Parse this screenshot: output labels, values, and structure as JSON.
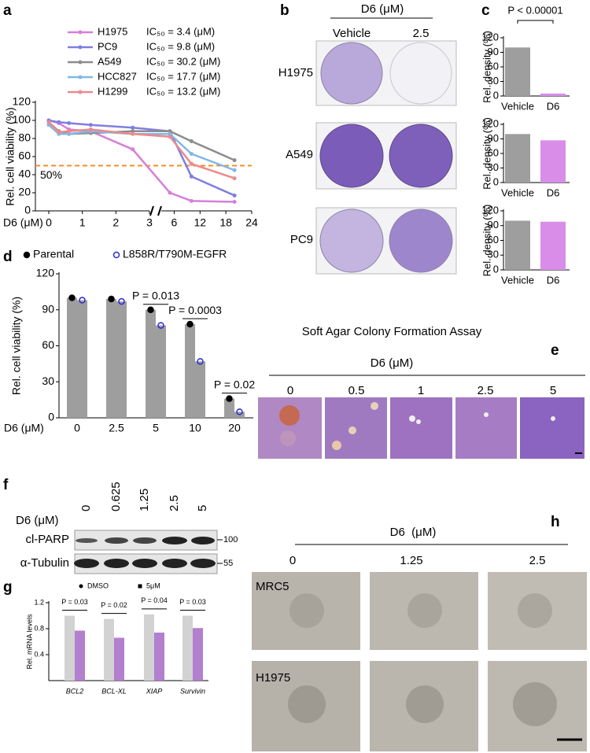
{
  "figure": {
    "letters": [
      "a",
      "b",
      "c",
      "d",
      "e",
      "f",
      "g",
      "h"
    ],
    "b": {
      "header": "D6 (μM)",
      "columns": [
        "Vehicle",
        "2.5"
      ],
      "rows": [
        "H1975",
        "A549",
        "PC9"
      ]
    },
    "e": {
      "title": "Soft Agar Colony Formation Assay",
      "header": "D6 (μM)",
      "columns": [
        "0",
        "0.5",
        "1",
        "2.5",
        "5"
      ]
    },
    "f": {
      "header": "D6 (μM)",
      "columns": [
        "0",
        "0.625",
        "1.25",
        "2.5",
        "5"
      ],
      "rows": [
        "cl-PARP",
        "α-Tubulin"
      ],
      "markers": [
        "100",
        "55"
      ]
    },
    "h": {
      "header": "D6  (μM)",
      "columns": [
        "0",
        "1.25",
        "2.5"
      ],
      "rows": [
        "MRC5",
        "H1975"
      ]
    }
  },
  "chart_data": [
    {
      "type": "line",
      "ylabel": "Rel. cell viability (%)",
      "xlabel": "D6 (μM)",
      "x": [
        0,
        0.3,
        0.6,
        1.25,
        2.5,
        5,
        10,
        20
      ],
      "xlim": [
        0,
        24
      ],
      "xbreak": 3,
      "xticks": [
        0,
        1,
        2,
        3,
        6,
        12,
        18,
        24
      ],
      "ylim": [
        0,
        120
      ],
      "yticks": [
        0,
        20,
        40,
        60,
        80,
        100,
        120
      ],
      "hline": {
        "value": 50,
        "label": "50%",
        "color": "#f0902a"
      },
      "series": [
        {
          "name": "H1975",
          "note": "IC₅₀ = 3.4 (μM)",
          "color": "#d67fd8",
          "values": [
            100,
            97,
            90,
            88,
            68,
            20,
            11,
            10
          ]
        },
        {
          "name": "PC9",
          "note": "IC₅₀ = 9.8 (μM)",
          "color": "#7f7fe0",
          "values": [
            100,
            98,
            97,
            95,
            92,
            88,
            38,
            17
          ]
        },
        {
          "name": "A549",
          "note": "IC₅₀ = 30.2 (μM)",
          "color": "#8c8c8c",
          "values": [
            98,
            88,
            85,
            86,
            88,
            88,
            77,
            56
          ]
        },
        {
          "name": "HCC827",
          "note": "IC₅₀ = 17.7 (μM)",
          "color": "#80b8e6",
          "values": [
            95,
            85,
            85,
            88,
            85,
            85,
            63,
            45
          ]
        },
        {
          "name": "H1299",
          "note": "IC₅₀ = 13.2 (μM)",
          "color": "#ec8a8a",
          "values": [
            98,
            87,
            88,
            90,
            85,
            82,
            52,
            36
          ]
        }
      ]
    },
    {
      "type": "bar",
      "ylabel": "Rel. density (%)",
      "categories": [
        "Vehicle",
        "D6"
      ],
      "values": [
        100,
        5
      ],
      "colors": [
        "#9e9e9e",
        "#d98de8"
      ],
      "ylim": [
        0,
        120
      ],
      "yticks": [
        0,
        30,
        60,
        90,
        120
      ],
      "annotation": "P < 0.00001"
    },
    {
      "type": "bar",
      "ylabel": "Rel. density (%)",
      "categories": [
        "Vehicle",
        "D6"
      ],
      "values": [
        100,
        87
      ],
      "colors": [
        "#9e9e9e",
        "#d98de8"
      ],
      "ylim": [
        0,
        120
      ],
      "yticks": [
        0,
        30,
        60,
        90,
        120
      ]
    },
    {
      "type": "bar",
      "ylabel": "Rel. density (%)",
      "categories": [
        "Vehicle",
        "D6"
      ],
      "values": [
        100,
        98
      ],
      "colors": [
        "#9e9e9e",
        "#d98de8"
      ],
      "ylim": [
        0,
        120
      ],
      "yticks": [
        0,
        30,
        60,
        90,
        120
      ]
    },
    {
      "type": "bar",
      "ylabel": "Rel. cell viability (%)",
      "xlabel": "D6 (μM)",
      "categories": [
        "0",
        "2.5",
        "5",
        "10",
        "20"
      ],
      "bar_color": "#9e9e9e",
      "series": [
        {
          "name": "Parental",
          "color": "#000000",
          "values": [
            100,
            99,
            90,
            78,
            16
          ]
        },
        {
          "name": "L858R/T790M-EGFR",
          "color": "#2a2ad8",
          "values": [
            98,
            97,
            77,
            47,
            5
          ]
        }
      ],
      "ylim": [
        0,
        120
      ],
      "yticks": [
        0,
        30,
        60,
        90,
        120
      ],
      "annotations": [
        null,
        null,
        "P = 0.013",
        "P = 0.0003",
        "P = 0.02"
      ]
    },
    {
      "type": "bar",
      "ylabel": "Rel. mRNA levels",
      "categories": [
        "BCL2",
        "BCL-XL",
        "XIAP",
        "Survivin"
      ],
      "series": [
        {
          "name": "DMSO",
          "color": "#d2d2d2",
          "values": [
            1.0,
            0.95,
            1.02,
            1.0
          ]
        },
        {
          "name": "5μM",
          "color": "#b37fcf",
          "values": [
            0.77,
            0.66,
            0.74,
            0.81
          ]
        }
      ],
      "ylim": [
        0,
        1.2
      ],
      "yticks": [
        0.4,
        0.8,
        1.2
      ],
      "annotations": [
        "P = 0.03",
        "P = 0.02",
        "P = 0.04",
        "P = 0.03"
      ]
    }
  ]
}
